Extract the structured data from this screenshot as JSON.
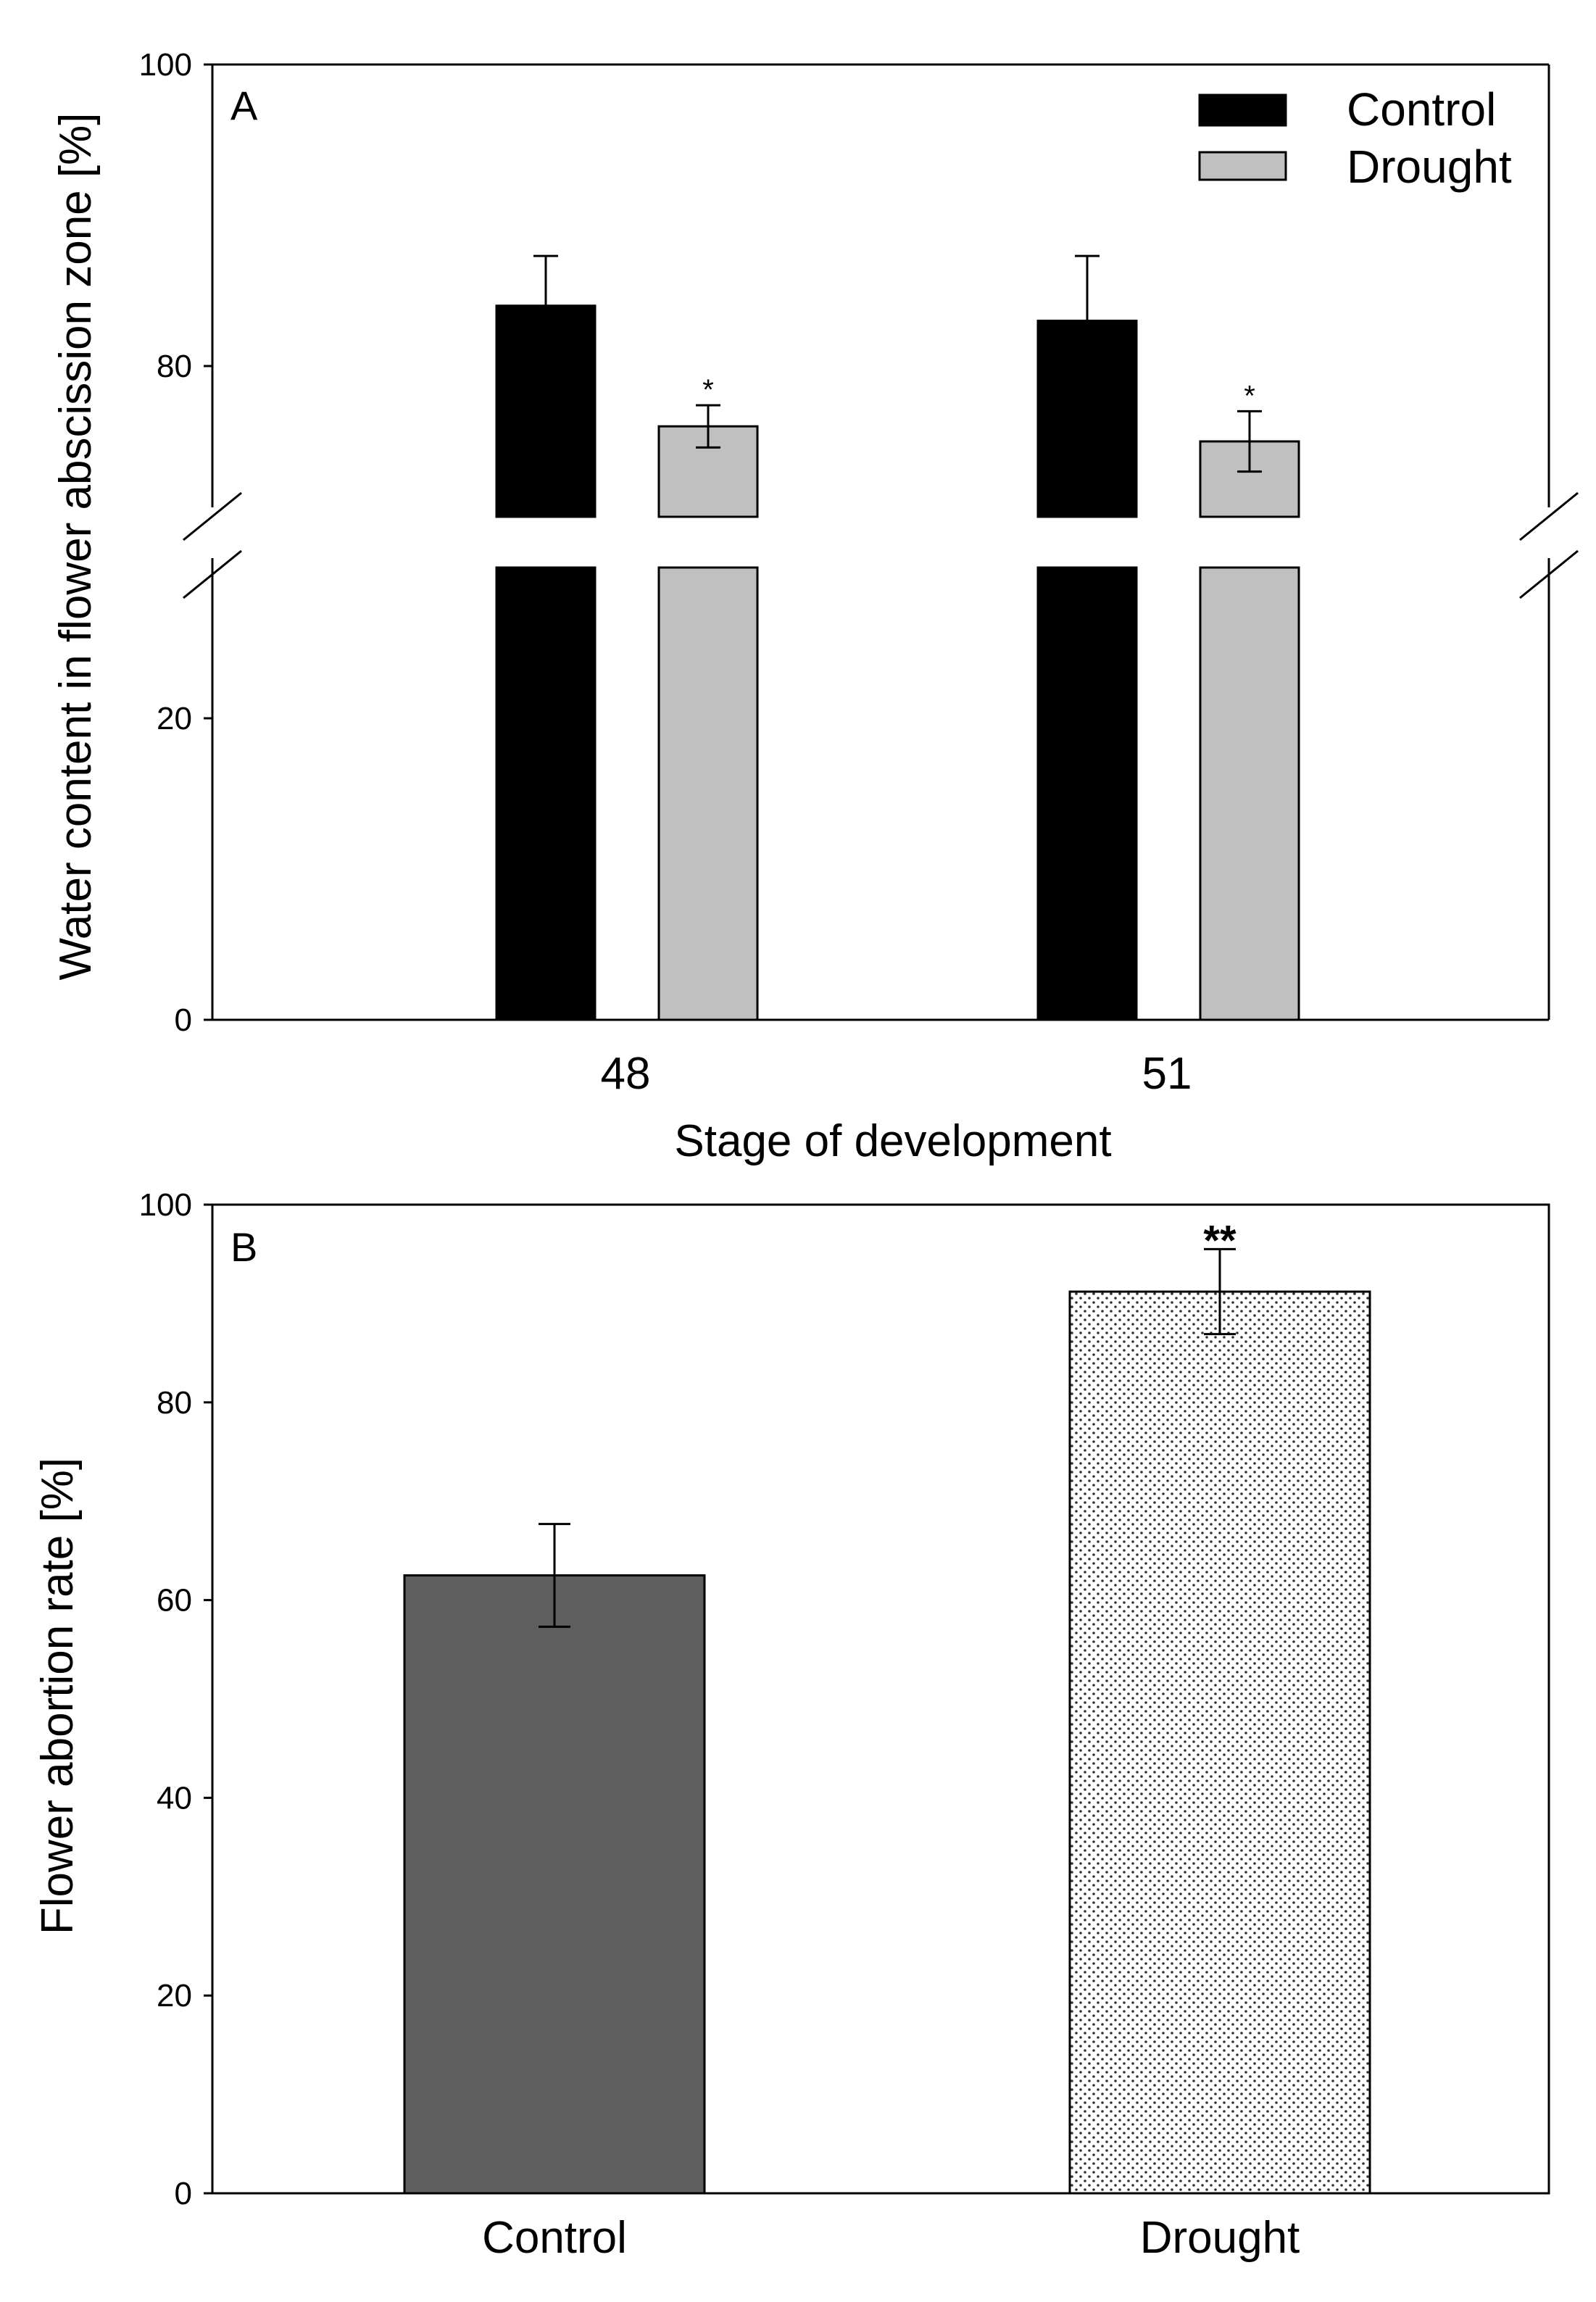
{
  "chart_data": [
    {
      "panel": "A",
      "type": "bar",
      "xlabel": "Stage of development",
      "ylabel": "Water content in flower abscission zone [%]",
      "categories": [
        "48",
        "51"
      ],
      "series": [
        {
          "name": "Control",
          "color": "#000000",
          "values": [
            84,
            83
          ],
          "errors": [
            3.3,
            4.3
          ],
          "significance": [
            "",
            ""
          ]
        },
        {
          "name": "Drought",
          "color": "#c0c0c0",
          "values": [
            76,
            75
          ],
          "errors": [
            1.4,
            2.0
          ],
          "significance": [
            "*",
            "*"
          ]
        }
      ],
      "y_axis_break": {
        "lower_range": [
          0,
          30
        ],
        "upper_range": [
          70,
          100
        ]
      },
      "y_ticks": [
        0,
        20,
        80,
        100
      ],
      "legend": {
        "position": "top-right",
        "entries": [
          "Control",
          "Drought"
        ]
      }
    },
    {
      "panel": "B",
      "type": "bar",
      "xlabel": "",
      "ylabel": "Flower abortion rate [%]",
      "categories": [
        "Control",
        "Drought"
      ],
      "values": [
        62.5,
        91.2
      ],
      "errors": [
        5.2,
        4.3
      ],
      "colors": [
        "#5e5e5e",
        "dotted"
      ],
      "significance": [
        "",
        "**"
      ],
      "ylim": [
        0,
        100
      ],
      "y_ticks": [
        0,
        20,
        40,
        60,
        80,
        100
      ]
    }
  ]
}
